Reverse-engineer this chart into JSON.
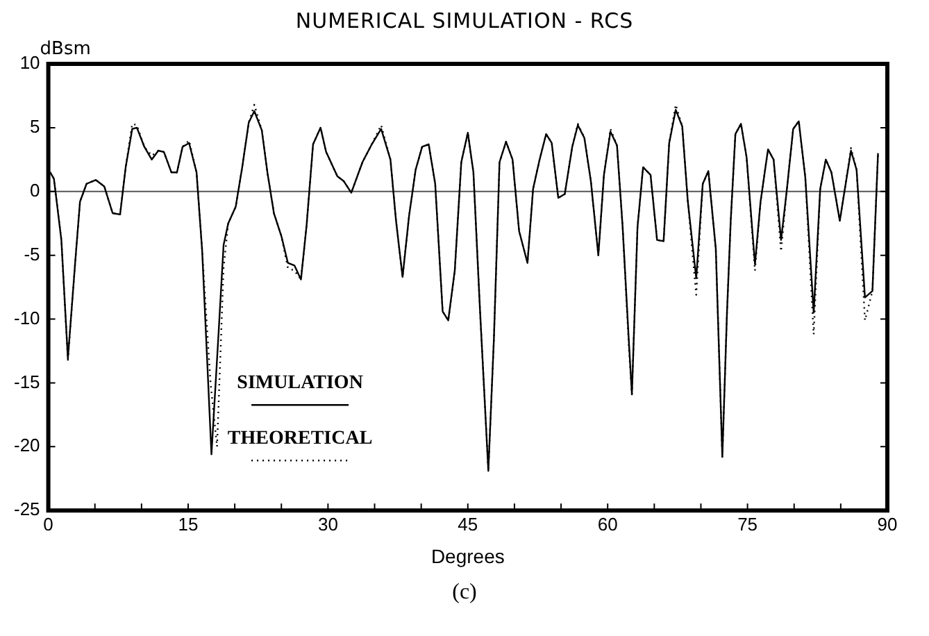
{
  "chart_data": {
    "type": "line",
    "title": "NUMERICAL SIMULATION - RCS",
    "xlabel": "Degrees",
    "ylabel": "dBsm",
    "annotations": [
      "(c)"
    ],
    "xlim": [
      0,
      90
    ],
    "xticks": [
      0,
      {
        "value": 5,
        "label": null
      },
      {
        "value": 10,
        "label": null
      },
      15,
      {
        "value": 20,
        "label": null
      },
      {
        "value": 25,
        "label": null
      },
      30,
      {
        "value": 35,
        "label": null
      },
      {
        "value": 40,
        "label": null
      },
      45,
      {
        "value": 50,
        "label": null
      },
      {
        "value": 55,
        "label": null
      },
      60,
      {
        "value": 65,
        "label": null
      },
      {
        "value": 70,
        "label": null
      },
      75,
      {
        "value": 80,
        "label": null
      },
      {
        "value": 85,
        "label": null
      },
      90
    ],
    "ylim": [
      -25,
      10
    ],
    "yticks": [
      10,
      5,
      0,
      -5,
      -10,
      -15,
      -20,
      -25
    ],
    "grid": false,
    "legend": "bottom left",
    "marker": "none",
    "ref_lines": [
      {
        "axis": "y",
        "value": 0,
        "color": "#555555"
      }
    ],
    "series": [
      {
        "name": "SIMULATION",
        "color": "#000000",
        "line_style": "solid",
        "x": [
          0.2,
          0.6,
          1.4,
          2.1,
          2.9,
          3.4,
          4.1,
          5.1,
          6.0,
          6.9,
          7.7,
          8.3,
          9.0,
          9.5,
          10.3,
          11.1,
          11.8,
          12.4,
          13.2,
          13.8,
          14.4,
          15.1,
          15.9,
          16.5,
          17.5,
          18.2,
          18.8,
          19.3,
          20.1,
          20.8,
          21.5,
          22.1,
          22.9,
          23.5,
          24.2,
          25.0,
          25.7,
          26.4,
          27.1,
          27.7,
          28.4,
          29.2,
          29.8,
          31.0,
          31.7,
          32.5,
          33.7,
          34.7,
          35.7,
          36.7,
          37.3,
          38.0,
          38.7,
          39.4,
          40.1,
          40.8,
          41.5,
          42.3,
          42.9,
          43.6,
          44.3,
          45.0,
          45.6,
          46.3,
          47.2,
          47.8,
          48.4,
          49.1,
          49.8,
          50.5,
          51.4,
          52.0,
          52.7,
          53.4,
          54.0,
          54.7,
          55.4,
          56.2,
          56.8,
          57.5,
          58.2,
          59.0,
          59.6,
          60.3,
          61.0,
          61.6,
          62.3,
          62.6,
          63.2,
          63.8,
          64.6,
          65.3,
          66.0,
          66.6,
          67.3,
          68.0,
          68.6,
          69.5,
          70.2,
          70.8,
          71.6,
          72.3,
          72.8,
          73.2,
          73.7,
          74.3,
          74.9,
          75.8,
          76.4,
          77.2,
          77.8,
          78.6,
          79.2,
          79.9,
          80.5,
          81.2,
          82.1,
          82.8,
          83.4,
          84.0,
          84.9,
          85.4,
          86.1,
          86.7,
          87.6,
          88.4,
          89.0
        ],
        "values": [
          1.5,
          1.0,
          -3.8,
          -13.1,
          -5.4,
          -0.8,
          0.6,
          0.9,
          0.4,
          -1.7,
          -1.8,
          1.9,
          4.9,
          5.0,
          3.5,
          2.5,
          3.2,
          3.1,
          1.5,
          1.5,
          3.5,
          3.8,
          1.5,
          -4.6,
          -20.6,
          -11.9,
          -4.2,
          -2.5,
          -1.2,
          1.9,
          5.4,
          6.3,
          4.8,
          1.5,
          -1.7,
          -3.5,
          -5.6,
          -5.8,
          -6.9,
          -2.7,
          3.7,
          5.0,
          3.1,
          1.2,
          0.8,
          -0.1,
          2.3,
          3.7,
          4.9,
          2.5,
          -2.3,
          -6.7,
          -1.9,
          1.7,
          3.5,
          3.7,
          0.6,
          -9.4,
          -10.1,
          -6.2,
          2.3,
          4.6,
          1.5,
          -9.2,
          -21.9,
          -11.5,
          2.3,
          3.9,
          2.5,
          -3.1,
          -5.6,
          0.2,
          2.5,
          4.5,
          3.8,
          -0.5,
          -0.2,
          3.5,
          5.2,
          4.2,
          0.8,
          -5.0,
          1.3,
          4.7,
          3.6,
          -2.7,
          -12.1,
          -15.9,
          -2.8,
          1.9,
          1.3,
          -3.8,
          -3.9,
          3.8,
          6.4,
          5.1,
          -0.8,
          -6.8,
          0.6,
          1.6,
          -4.5,
          -20.8,
          -9.5,
          -2.3,
          4.5,
          5.3,
          2.7,
          -5.7,
          -0.8,
          3.3,
          2.5,
          -3.8,
          0.0,
          4.9,
          5.5,
          1.1,
          -9.5,
          0.2,
          2.5,
          1.5,
          -2.3,
          0.0,
          3.2,
          1.7,
          -8.3,
          -7.8,
          3.0
        ]
      },
      {
        "name": "THEORETICAL",
        "color": "#000000",
        "line_style": "dotted",
        "x": [
          0.2,
          0.6,
          1.4,
          2.1,
          2.9,
          3.4,
          4.1,
          5.1,
          6.0,
          6.9,
          7.7,
          8.3,
          9.0,
          9.5,
          10.3,
          11.1,
          11.8,
          12.4,
          13.2,
          13.8,
          14.4,
          15.1,
          15.9,
          16.5,
          17.4,
          18.1,
          18.8,
          19.3,
          20.1,
          20.8,
          21.5,
          22.1,
          22.9,
          23.5,
          24.2,
          25.0,
          25.7,
          26.4,
          27.1,
          27.7,
          28.4,
          29.2,
          29.8,
          31.0,
          31.7,
          32.5,
          33.7,
          34.7,
          35.7,
          36.7,
          37.3,
          38.0,
          38.7,
          39.4,
          40.1,
          40.8,
          41.5,
          42.3,
          42.9,
          43.6,
          44.3,
          45.0,
          45.6,
          46.3,
          47.2,
          47.8,
          48.4,
          49.1,
          49.8,
          50.5,
          51.4,
          52.0,
          52.7,
          53.4,
          54.0,
          54.7,
          55.4,
          56.2,
          56.8,
          57.5,
          58.2,
          59.0,
          59.6,
          60.3,
          61.0,
          61.6,
          62.3,
          62.6,
          63.2,
          63.8,
          64.6,
          65.3,
          66.0,
          66.6,
          67.3,
          68.0,
          68.6,
          69.5,
          70.2,
          70.8,
          71.6,
          72.3,
          72.8,
          73.2,
          73.7,
          74.3,
          74.9,
          75.8,
          76.4,
          77.2,
          77.8,
          78.6,
          79.2,
          79.9,
          80.5,
          81.2,
          82.1,
          82.8,
          83.4,
          84.0,
          84.9,
          85.4,
          86.1,
          86.7,
          87.6,
          88.4,
          89.0
        ],
        "values": [
          1.5,
          1.0,
          -3.8,
          -13.2,
          -5.4,
          -0.8,
          0.6,
          0.9,
          0.4,
          -1.7,
          -1.8,
          1.9,
          5.3,
          5.2,
          3.5,
          2.8,
          3.2,
          3.1,
          1.5,
          1.5,
          3.5,
          4.0,
          1.5,
          -4.6,
          -15.0,
          -20.0,
          -6.0,
          -2.5,
          -1.2,
          1.9,
          5.4,
          6.8,
          4.8,
          1.5,
          -1.7,
          -3.5,
          -6.0,
          -6.2,
          -6.9,
          -2.7,
          3.7,
          5.0,
          3.1,
          1.2,
          0.8,
          -0.1,
          2.3,
          3.7,
          5.2,
          2.5,
          -2.3,
          -6.7,
          -1.9,
          1.7,
          3.5,
          3.7,
          0.6,
          -9.4,
          -10.1,
          -6.2,
          2.3,
          4.6,
          1.5,
          -9.2,
          -21.9,
          -11.5,
          2.3,
          3.9,
          2.5,
          -3.1,
          -5.6,
          0.2,
          2.5,
          4.5,
          3.8,
          -0.5,
          -0.2,
          3.5,
          5.3,
          4.2,
          0.8,
          -5.0,
          1.3,
          4.9,
          3.6,
          -2.7,
          -12.5,
          -15.9,
          -2.8,
          1.9,
          1.3,
          -3.8,
          -3.9,
          3.8,
          6.8,
          5.1,
          -0.8,
          -8.1,
          0.6,
          1.6,
          -4.5,
          -20.8,
          -9.5,
          -2.3,
          4.5,
          5.3,
          2.7,
          -6.2,
          -0.8,
          3.3,
          2.5,
          -4.7,
          0.0,
          4.9,
          5.5,
          1.1,
          -11.2,
          0.2,
          2.5,
          1.5,
          -2.3,
          0.0,
          3.4,
          1.7,
          -10.1,
          -7.8,
          3.0
        ]
      }
    ]
  }
}
